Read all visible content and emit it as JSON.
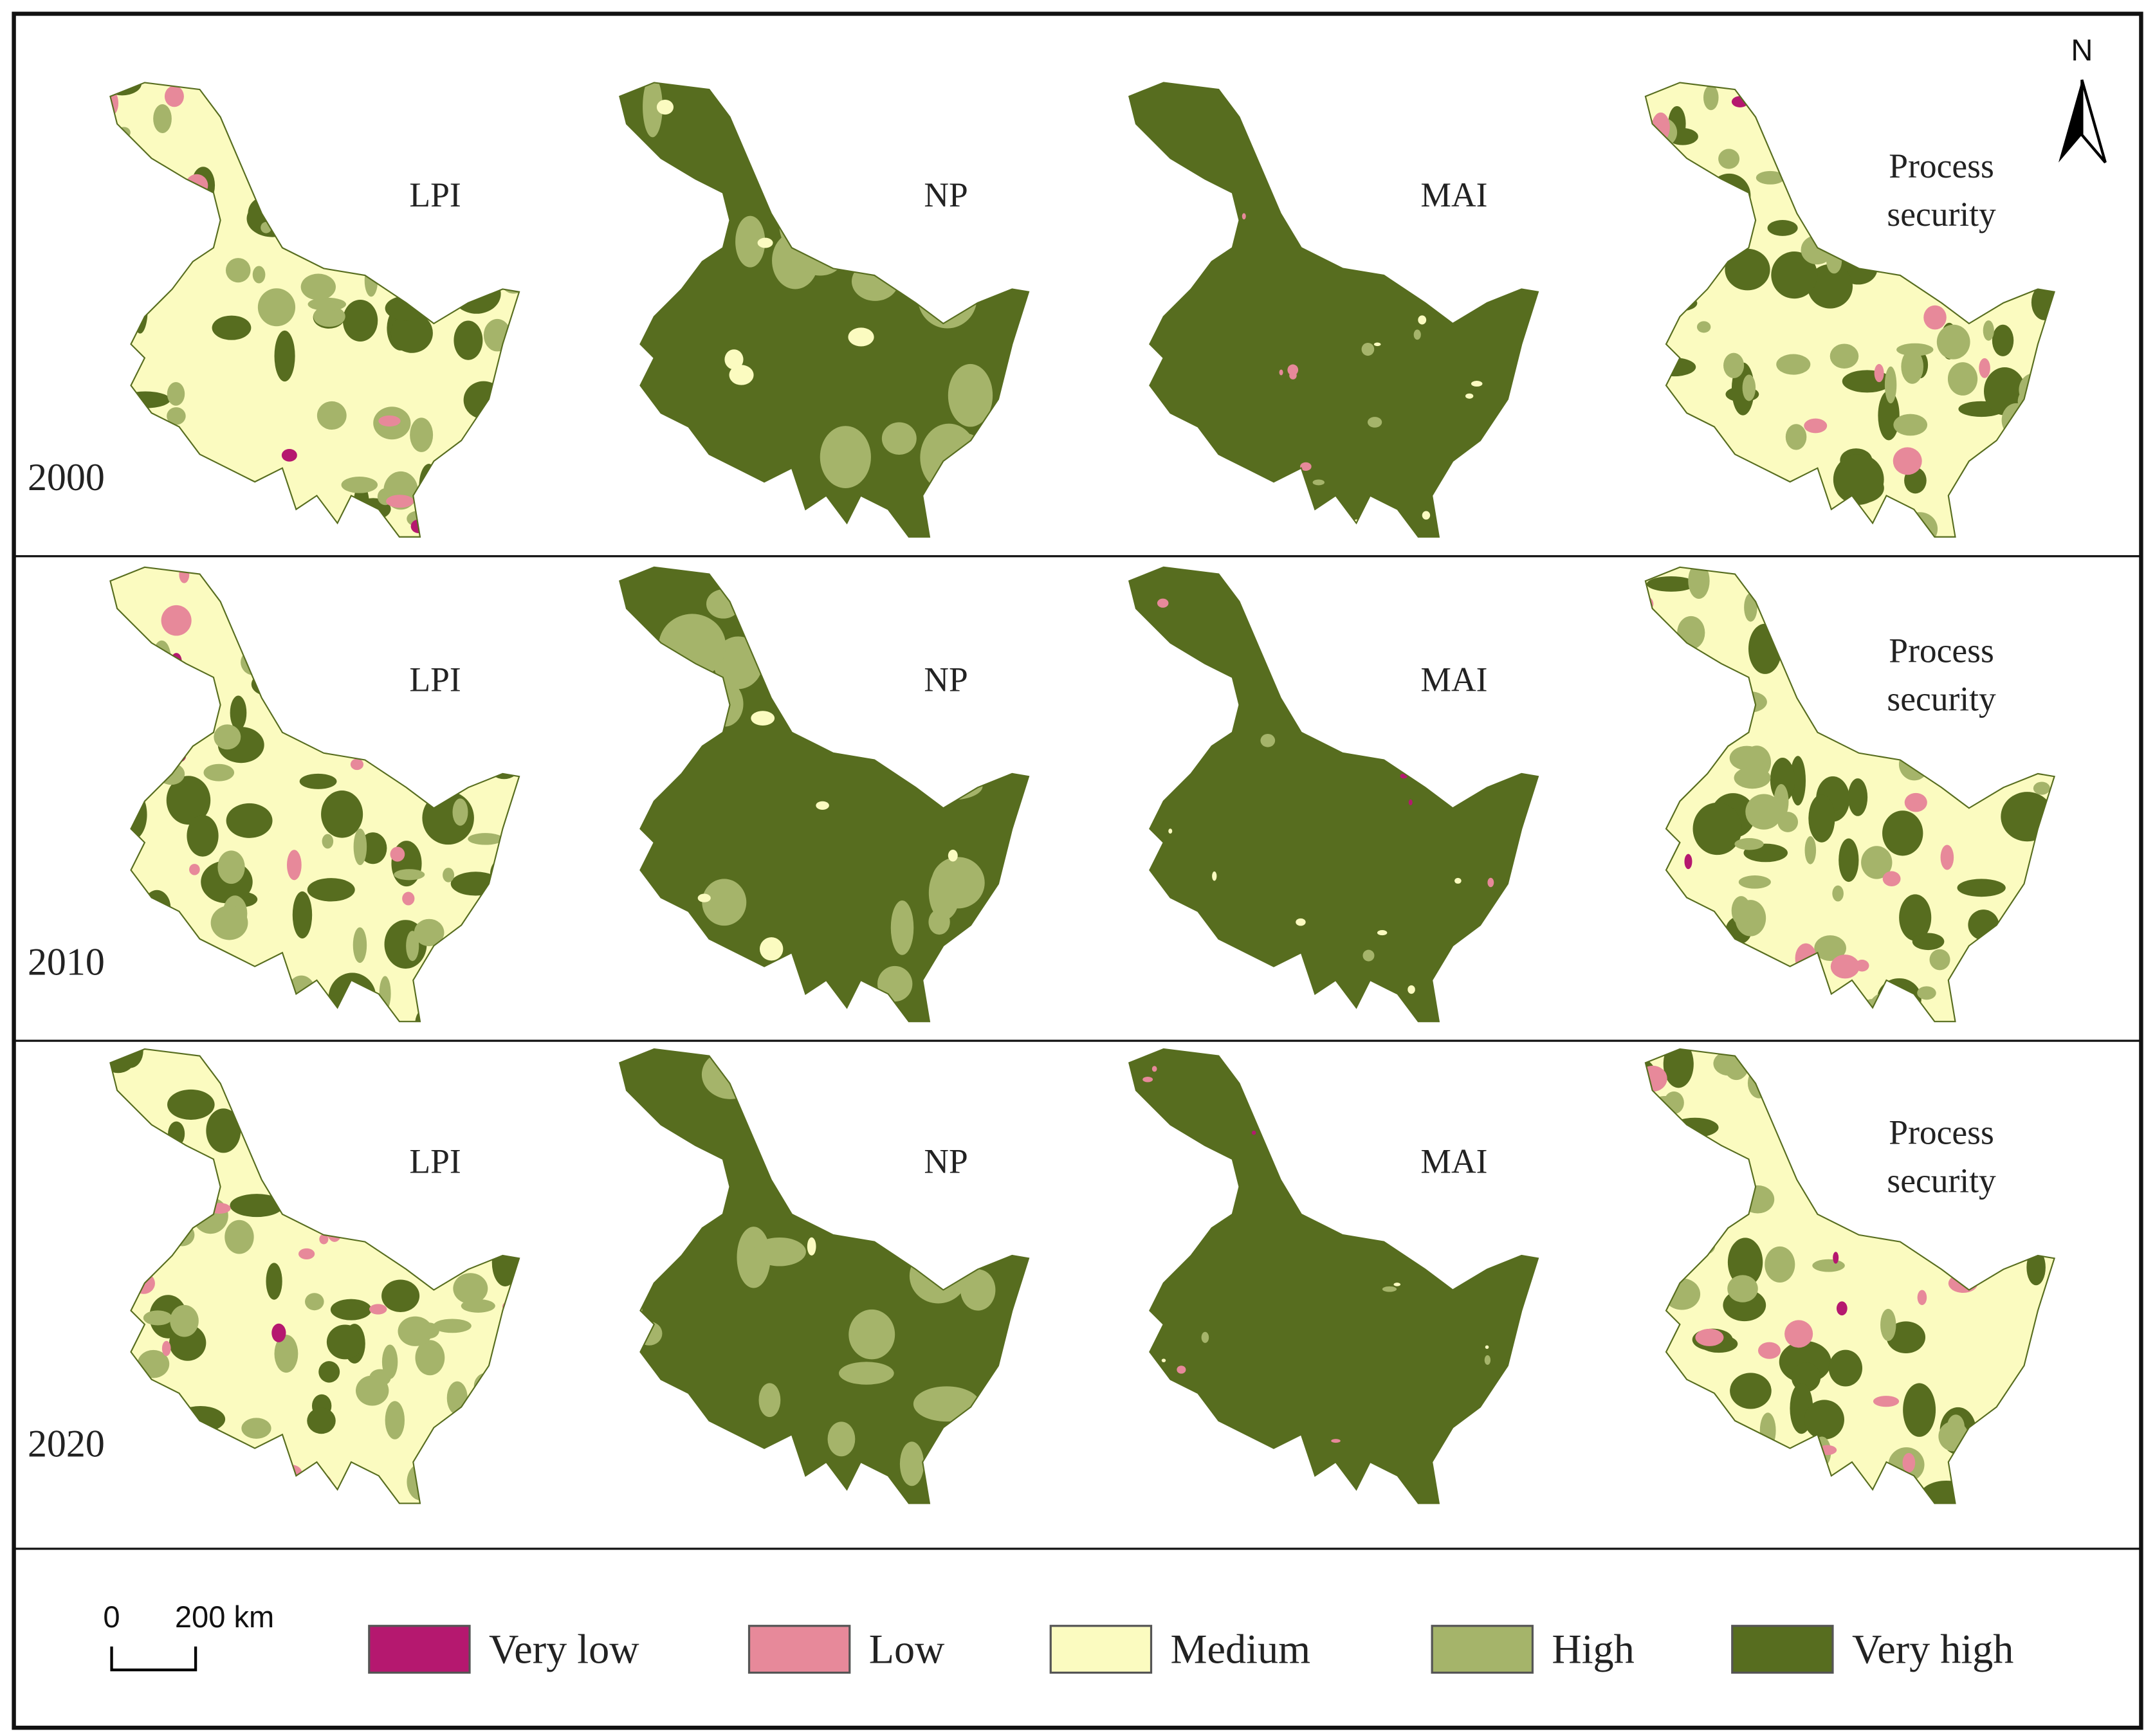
{
  "rows": [
    {
      "year": "2000",
      "panels": [
        "LPI",
        "NP",
        "MAI",
        "Process security"
      ]
    },
    {
      "year": "2010",
      "panels": [
        "LPI",
        "NP",
        "MAI",
        "Process security"
      ]
    },
    {
      "year": "2020",
      "panels": [
        "LPI",
        "NP",
        "MAI",
        "Process security"
      ]
    }
  ],
  "north": "N",
  "scale_bar": {
    "start": "0",
    "end": "200 km"
  },
  "legend": [
    {
      "label": "Very low",
      "color": "#b5186f"
    },
    {
      "label": "Low",
      "color": "#e7899a"
    },
    {
      "label": "Medium",
      "color": "#fbfbc0"
    },
    {
      "label": "High",
      "color": "#a5b46a"
    },
    {
      "label": "Very high",
      "color": "#576d1f"
    }
  ]
}
